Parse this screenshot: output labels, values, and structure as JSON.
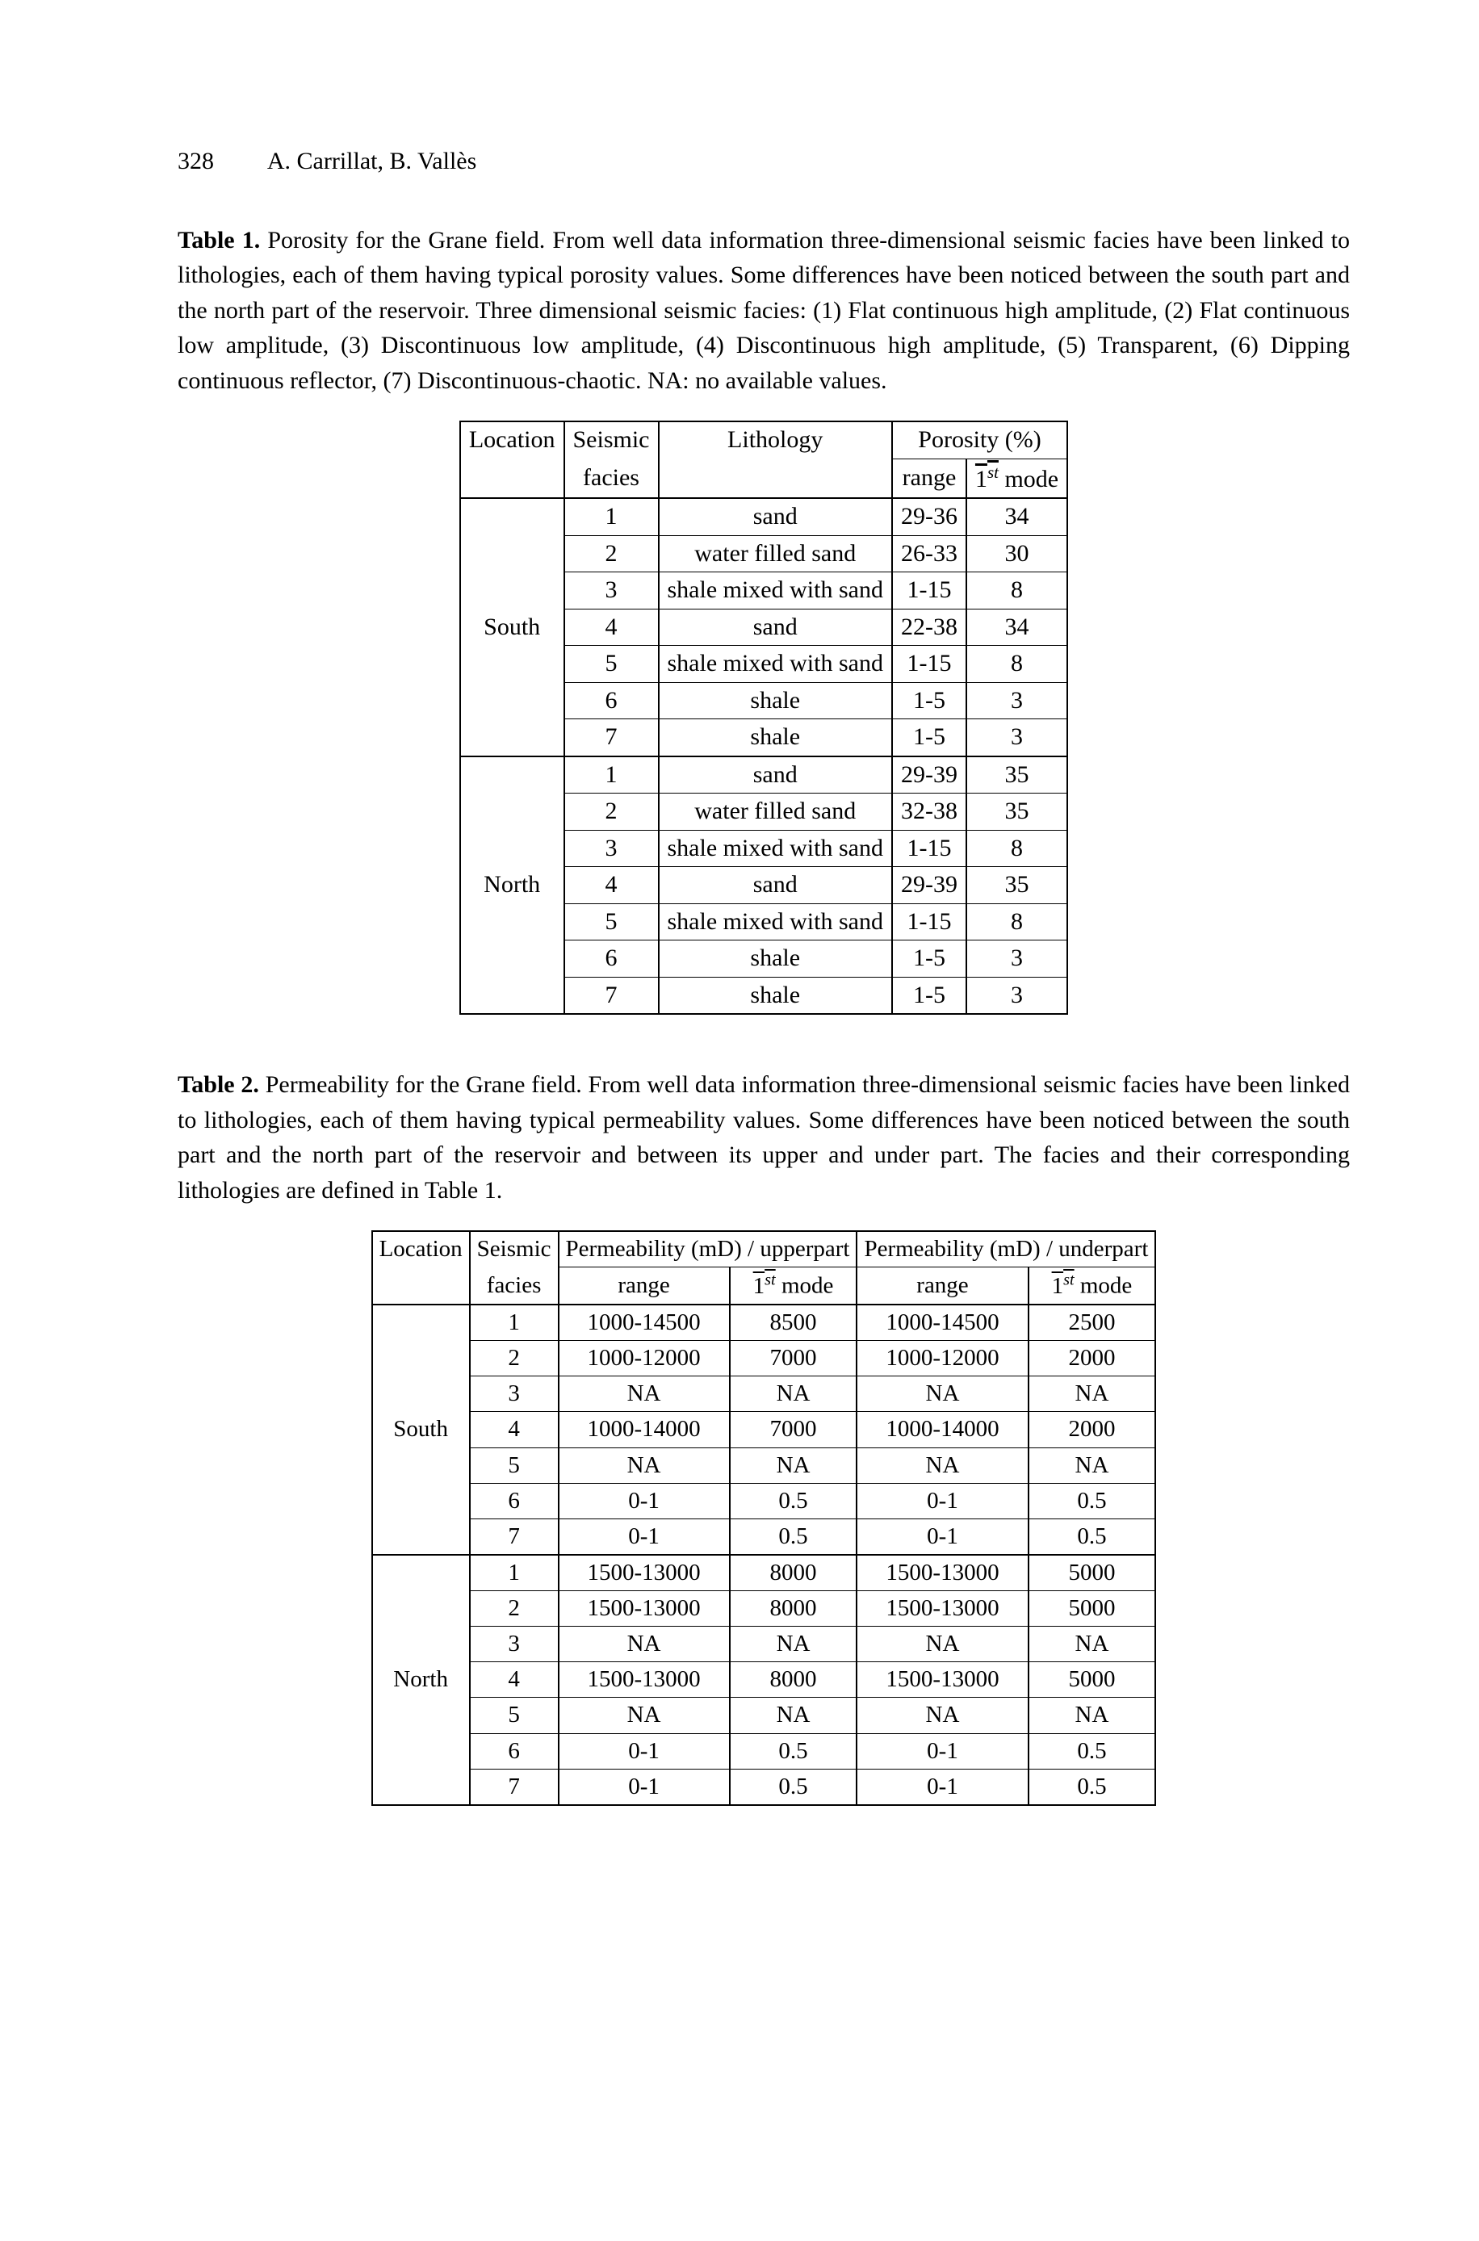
{
  "header": {
    "page_number": "328",
    "authors": "A. Carrillat, B. Vallès"
  },
  "table1": {
    "label": "Table 1.",
    "caption": "Porosity for the Grane field. From well data information three-dimensional seismic facies have been linked to lithologies, each of them having typical porosity values. Some differences have been noticed between the south part and the north part of the reservoir. Three dimensional seismic facies: (1) Flat continuous high amplitude, (2) Flat continuous low amplitude, (3) Discontinuous low amplitude, (4) Discontinuous high amplitude, (5) Transparent, (6) Dipping continuous reflector, (7) Discontinuous-chaotic. NA: no available values.",
    "headers": {
      "location": "Location",
      "seismic": "Seismic",
      "facies": "facies",
      "lithology": "Lithology",
      "porosity": "Porosity (%)",
      "range": "range",
      "mode_prefix": "1",
      "mode_sup": "st",
      "mode_suffix": " mode"
    },
    "blocks": [
      {
        "location": "South",
        "rows": [
          {
            "facies": "1",
            "lith": "sand",
            "range": "29-36",
            "mode": "34"
          },
          {
            "facies": "2",
            "lith": "water filled sand",
            "range": "26-33",
            "mode": "30"
          },
          {
            "facies": "3",
            "lith": "shale mixed with sand",
            "range": "1-15",
            "mode": "8"
          },
          {
            "facies": "4",
            "lith": "sand",
            "range": "22-38",
            "mode": "34"
          },
          {
            "facies": "5",
            "lith": "shale mixed with sand",
            "range": "1-15",
            "mode": "8"
          },
          {
            "facies": "6",
            "lith": "shale",
            "range": "1-5",
            "mode": "3"
          },
          {
            "facies": "7",
            "lith": "shale",
            "range": "1-5",
            "mode": "3"
          }
        ]
      },
      {
        "location": "North",
        "rows": [
          {
            "facies": "1",
            "lith": "sand",
            "range": "29-39",
            "mode": "35"
          },
          {
            "facies": "2",
            "lith": "water filled sand",
            "range": "32-38",
            "mode": "35"
          },
          {
            "facies": "3",
            "lith": "shale mixed with sand",
            "range": "1-15",
            "mode": "8"
          },
          {
            "facies": "4",
            "lith": "sand",
            "range": "29-39",
            "mode": "35"
          },
          {
            "facies": "5",
            "lith": "shale mixed with sand",
            "range": "1-15",
            "mode": "8"
          },
          {
            "facies": "6",
            "lith": "shale",
            "range": "1-5",
            "mode": "3"
          },
          {
            "facies": "7",
            "lith": "shale",
            "range": "1-5",
            "mode": "3"
          }
        ]
      }
    ]
  },
  "table2": {
    "label": "Table 2.",
    "caption": "Permeability for the Grane field. From well data information three-dimensional seismic facies have been linked to lithologies, each of them having typical permeability values. Some differences have been noticed between the south part and the north part of the reservoir and between its upper and under part. The facies and their corresponding lithologies are defined in Table 1.",
    "headers": {
      "location": "Location",
      "seismic": "Seismic",
      "facies": "facies",
      "perm_upper": "Permeability (mD) /  upperpart",
      "perm_under": "Permeability (mD) /  underpart",
      "range": "range",
      "mode_prefix": "1",
      "mode_sup": "st",
      "mode_suffix": " mode"
    },
    "blocks": [
      {
        "location": "South",
        "rows": [
          {
            "facies": "1",
            "ur": "1000-14500",
            "um": "8500",
            "dr": "1000-14500",
            "dm": "2500"
          },
          {
            "facies": "2",
            "ur": "1000-12000",
            "um": "7000",
            "dr": "1000-12000",
            "dm": "2000"
          },
          {
            "facies": "3",
            "ur": "NA",
            "um": "NA",
            "dr": "NA",
            "dm": "NA"
          },
          {
            "facies": "4",
            "ur": "1000-14000",
            "um": "7000",
            "dr": "1000-14000",
            "dm": "2000"
          },
          {
            "facies": "5",
            "ur": "NA",
            "um": "NA",
            "dr": "NA",
            "dm": "NA"
          },
          {
            "facies": "6",
            "ur": "0-1",
            "um": "0.5",
            "dr": "0-1",
            "dm": "0.5"
          },
          {
            "facies": "7",
            "ur": "0-1",
            "um": "0.5",
            "dr": "0-1",
            "dm": "0.5"
          }
        ]
      },
      {
        "location": "North",
        "rows": [
          {
            "facies": "1",
            "ur": "1500-13000",
            "um": "8000",
            "dr": "1500-13000",
            "dm": "5000"
          },
          {
            "facies": "2",
            "ur": "1500-13000",
            "um": "8000",
            "dr": "1500-13000",
            "dm": "5000"
          },
          {
            "facies": "3",
            "ur": "NA",
            "um": "NA",
            "dr": "NA",
            "dm": "NA"
          },
          {
            "facies": "4",
            "ur": "1500-13000",
            "um": "8000",
            "dr": "1500-13000",
            "dm": "5000"
          },
          {
            "facies": "5",
            "ur": "NA",
            "um": "NA",
            "dr": "NA",
            "dm": "NA"
          },
          {
            "facies": "6",
            "ur": "0-1",
            "um": "0.5",
            "dr": "0-1",
            "dm": "0.5"
          },
          {
            "facies": "7",
            "ur": "0-1",
            "um": "0.5",
            "dr": "0-1",
            "dm": "0.5"
          }
        ]
      }
    ]
  }
}
